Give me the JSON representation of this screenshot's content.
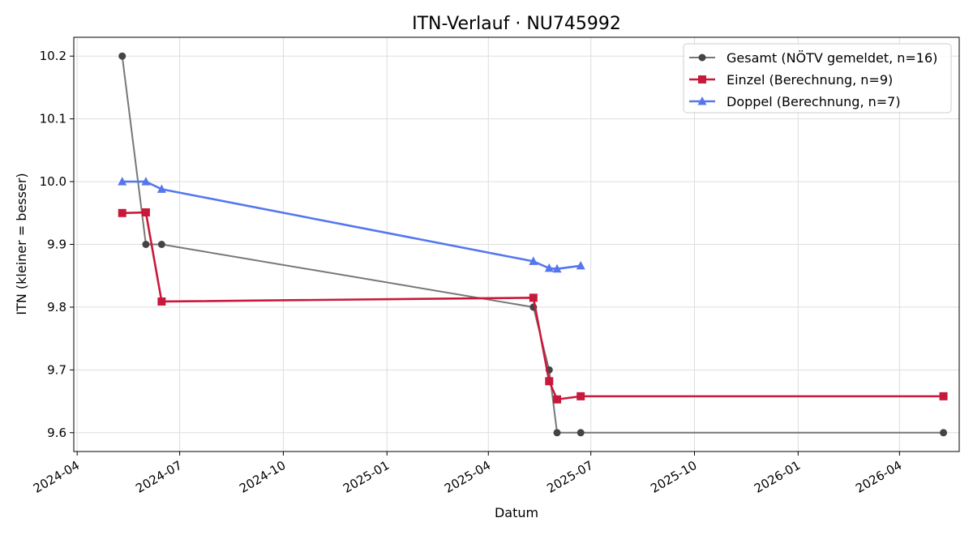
{
  "chart_data": {
    "type": "line",
    "title": "ITN-Verlauf · NU745992",
    "xlabel": "Datum",
    "ylabel": "ITN  (kleiner = besser)",
    "x_type": "date",
    "xlim": [
      "2024-03-29",
      "2026-05-24"
    ],
    "ylim": [
      9.57,
      10.23
    ],
    "grid": true,
    "legend_position": "top-right",
    "x_ticks": [
      "2024-04",
      "2024-07",
      "2024-10",
      "2025-01",
      "2025-04",
      "2025-07",
      "2025-10",
      "2026-01",
      "2026-04"
    ],
    "y_ticks": [
      "9.6",
      "9.7",
      "9.8",
      "9.9",
      "10.0",
      "10.1",
      "10.2"
    ],
    "series": [
      {
        "name": "Gesamt (NÖTV gemeldet, n=16)",
        "color": "#777777",
        "marker_color": "#444444",
        "marker": "circle",
        "x": [
          "2024-05-11",
          "2024-06-01",
          "2024-06-15",
          "2025-05-11",
          "2025-05-25",
          "2025-06-01",
          "2025-06-22",
          "2026-05-10"
        ],
        "y": [
          10.2,
          9.9,
          9.9,
          9.8,
          9.7,
          9.6,
          9.6,
          9.6
        ]
      },
      {
        "name": "Einzel (Berechnung, n=9)",
        "color": "#c8193a",
        "marker_color": "#c8193a",
        "marker": "square",
        "x": [
          "2024-05-11",
          "2024-06-01",
          "2024-06-15",
          "2025-05-11",
          "2025-05-25",
          "2025-06-01",
          "2025-06-22",
          "2026-05-10"
        ],
        "y": [
          9.95,
          9.951,
          9.809,
          9.815,
          9.682,
          9.653,
          9.658,
          9.658
        ]
      },
      {
        "name": "Doppel (Berechnung, n=7)",
        "color": "#5577ee",
        "marker_color": "#5577ee",
        "marker": "triangle",
        "x": [
          "2024-05-11",
          "2024-06-01",
          "2024-06-15",
          "2025-05-11",
          "2025-05-25",
          "2025-06-01",
          "2025-06-22"
        ],
        "y": [
          10.0,
          10.0,
          9.988,
          9.873,
          9.862,
          9.861,
          9.866
        ]
      }
    ]
  }
}
